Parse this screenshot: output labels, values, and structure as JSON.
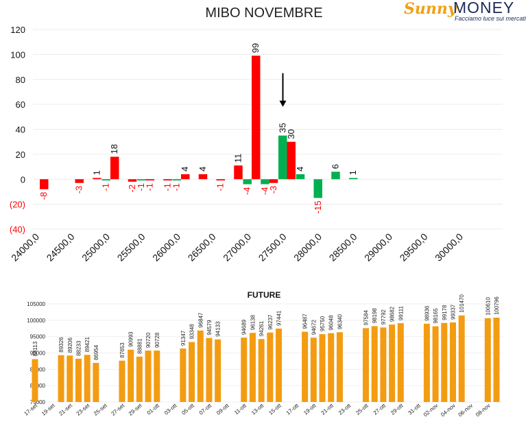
{
  "title": "MIBO NOVEMBRE",
  "logo": {
    "brand_script": "Sunny",
    "brand_word": "MONEY",
    "tagline": "Facciamo luce sui mercati"
  },
  "colors": {
    "green": "#00b050",
    "red": "#ff0000",
    "orange": "#f39c12",
    "axis_text": "#333333",
    "neg_text": "#ff0000"
  },
  "chart_data": [
    {
      "type": "bar",
      "title": "MIBO NOVEMBRE",
      "ylim": [
        -40,
        120
      ],
      "yticks": [
        -40,
        -20,
        0,
        20,
        40,
        60,
        80,
        100,
        120
      ],
      "ytick_labels": [
        "(40)",
        "(20)",
        "0",
        "20",
        "40",
        "60",
        "80",
        "100",
        "120"
      ],
      "xlim": [
        24000,
        30000
      ],
      "xticks": [
        24000,
        24500,
        25000,
        25500,
        26000,
        26500,
        27000,
        27500,
        28000,
        28500,
        29000,
        29500,
        30000
      ],
      "xtick_labels": [
        "24000,0",
        "24500,0",
        "25000,0",
        "25500,0",
        "26000,0",
        "26500,0",
        "27000,0",
        "27500,0",
        "28000,0",
        "28500,0",
        "29000,0",
        "29500,0",
        "30000,0"
      ],
      "series": [
        {
          "color": "#00b050",
          "points": [
            [
              25000,
              -1
            ],
            [
              25500,
              -1
            ],
            [
              26000,
              -1
            ],
            [
              27000,
              -4
            ],
            [
              27250,
              -4
            ],
            [
              27500,
              35
            ],
            [
              27750,
              4
            ],
            [
              28000,
              -15
            ],
            [
              28250,
              6
            ],
            [
              28500,
              1
            ]
          ]
        },
        {
          "color": "#ff0000",
          "points": [
            [
              24000,
              -8
            ],
            [
              24500,
              -3
            ],
            [
              24750,
              1
            ],
            [
              25000,
              18
            ],
            [
              25250,
              -2
            ],
            [
              25500,
              -1
            ],
            [
              25750,
              -1
            ],
            [
              26000,
              4
            ],
            [
              26250,
              4
            ],
            [
              26500,
              -1
            ],
            [
              26750,
              11
            ],
            [
              27000,
              99
            ],
            [
              27250,
              -3
            ],
            [
              27500,
              30
            ]
          ]
        }
      ],
      "annotation": {
        "type": "arrow-down",
        "x": 27500,
        "y_from": 85,
        "y_to": 58
      }
    },
    {
      "type": "bar",
      "title": "FUTURE",
      "ylim": [
        75000,
        105000
      ],
      "yticks": [
        75000,
        80000,
        85000,
        90000,
        95000,
        100000,
        105000
      ],
      "ytick_labels": [
        "75000",
        "80000",
        "85000",
        "90000",
        "95000",
        "100000",
        "105000"
      ],
      "x_labels": [
        "17-set",
        "19-set",
        "21-set",
        "23-set",
        "25-set",
        "27-set",
        "29-set",
        "01-ott",
        "03-ott",
        "05-ott",
        "07-ott",
        "09-ott",
        "11-ott",
        "13-ott",
        "15-ott",
        "17-ott",
        "19-ott",
        "21-ott",
        "23-ott",
        "25-ott",
        "27-ott",
        "29-ott",
        "31-ott",
        "02-nov",
        "04-nov",
        "06-nov",
        "08-nov"
      ],
      "day_count": 53,
      "bars": [
        {
          "day": 0,
          "value": 88113
        },
        {
          "day": 3,
          "value": 89326
        },
        {
          "day": 4,
          "value": 89206
        },
        {
          "day": 5,
          "value": 88233
        },
        {
          "day": 6,
          "value": 89421
        },
        {
          "day": 7,
          "value": 86954
        },
        {
          "day": 10,
          "value": 87653
        },
        {
          "day": 11,
          "value": 90993
        },
        {
          "day": 12,
          "value": 88881
        },
        {
          "day": 13,
          "value": 90720
        },
        {
          "day": 14,
          "value": 90728
        },
        {
          "day": 17,
          "value": 91347
        },
        {
          "day": 18,
          "value": 93348
        },
        {
          "day": 19,
          "value": 96847
        },
        {
          "day": 20,
          "value": 94579
        },
        {
          "day": 21,
          "value": 94133
        },
        {
          "day": 24,
          "value": 94689
        },
        {
          "day": 25,
          "value": 96138
        },
        {
          "day": 26,
          "value": 94261
        },
        {
          "day": 27,
          "value": 96237
        },
        {
          "day": 28,
          "value": 97441
        },
        {
          "day": 31,
          "value": 96487
        },
        {
          "day": 32,
          "value": 94672
        },
        {
          "day": 33,
          "value": 95750
        },
        {
          "day": 34,
          "value": 96048
        },
        {
          "day": 35,
          "value": 96340
        },
        {
          "day": 38,
          "value": 97584
        },
        {
          "day": 39,
          "value": 98198
        },
        {
          "day": 40,
          "value": 97792
        },
        {
          "day": 41,
          "value": 98682
        },
        {
          "day": 42,
          "value": 99111
        },
        {
          "day": 45,
          "value": 98936
        },
        {
          "day": 46,
          "value": 98165
        },
        {
          "day": 47,
          "value": 99178
        },
        {
          "day": 48,
          "value": 99337
        },
        {
          "day": 49,
          "value": 101470
        },
        {
          "day": 52,
          "value": 100610
        },
        {
          "day": 53,
          "value": 100796
        }
      ]
    }
  ]
}
